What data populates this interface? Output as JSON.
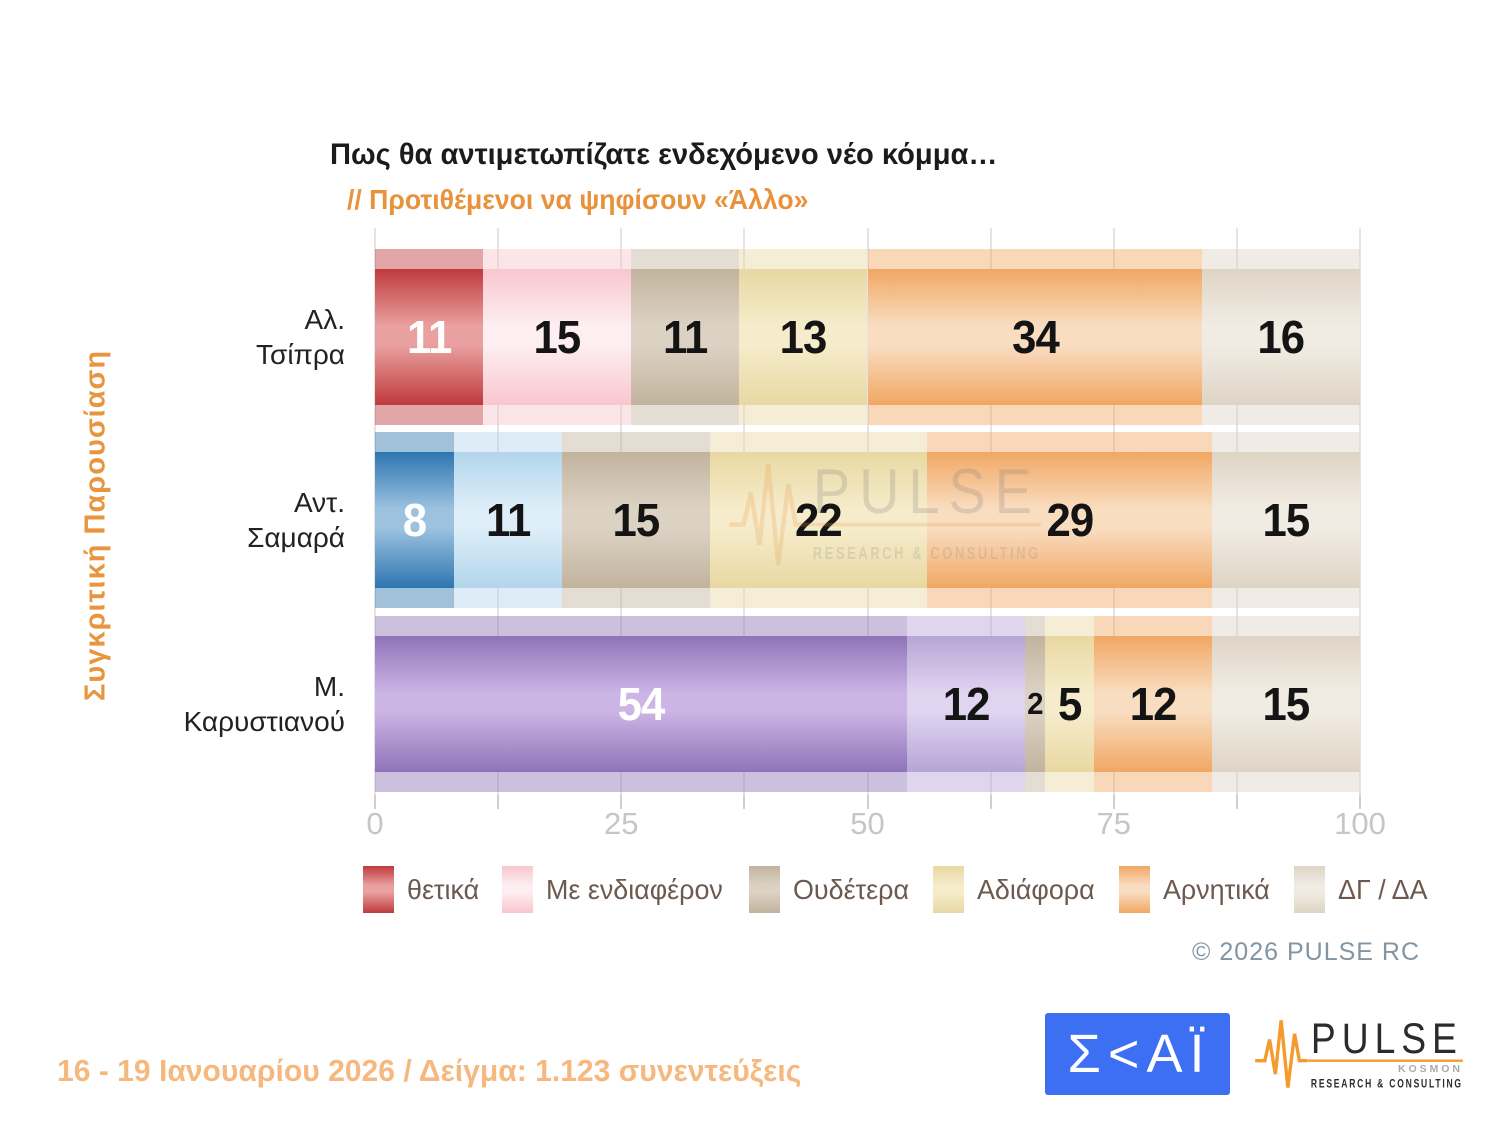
{
  "title": "Πως θα αντιμετωπίζατε ενδεχόμενο νέο κόμμα…",
  "subtitle": "// Προτιθέμενοι να ψηφίσουν «Άλλο»",
  "side_label": "Συγκριτική  Παρουσίαση",
  "footer": {
    "fieldwork": "16 - 19 Ιανουαρίου 2026  /  Δείγμα:  1.123 συνεντεύξεις",
    "copyright": "©  2026  PULSE RC"
  },
  "logos": {
    "skai_text": "Σ<ΑΪ",
    "pulse_text": "PULSE",
    "pulse_kosmon": "KOSMON",
    "pulse_sub": "RESEARCH & CONSULTING"
  },
  "watermark": {
    "text": "PULSE",
    "sub": "RESEARCH & CONSULTING"
  },
  "chart_data": {
    "type": "bar",
    "stacked": true,
    "orientation": "horizontal",
    "title": "Πως θα αντιμετωπίζατε ενδεχόμενο νέο κόμμα…",
    "subtitle": "// Προτιθέμενοι να ψηφίσουν «Άλλο»",
    "xlim": [
      0,
      100
    ],
    "x_ticks": [
      0,
      25,
      50,
      75,
      100
    ],
    "x_minor_tick_step": 12.5,
    "grid": true,
    "legend_position": "bottom",
    "categories": [
      "Αλ. Τσίπρα",
      "Αντ. Σαμαρά",
      "Μ. Καρυστιανού"
    ],
    "series": [
      {
        "name": "θετικά",
        "values": [
          11,
          8,
          54
        ]
      },
      {
        "name": "Με ενδιαφέρον",
        "values": [
          15,
          11,
          12
        ]
      },
      {
        "name": "Ουδέτερα",
        "values": [
          11,
          15,
          2
        ]
      },
      {
        "name": "Αδιάφορα",
        "values": [
          13,
          22,
          5
        ]
      },
      {
        "name": "Αρνητικά",
        "values": [
          34,
          29,
          12
        ]
      },
      {
        "name": "ΔΓ / ΔΑ",
        "values": [
          16,
          15,
          15
        ]
      }
    ],
    "rows": [
      {
        "label_lines": [
          "Αλ.",
          "Τσίπρα"
        ],
        "segments": [
          {
            "value": 11,
            "dark": "#bf3a3c",
            "light": "#e9a0a0",
            "text_color": "#ffffff"
          },
          {
            "value": 15,
            "dark": "#f9c6cf",
            "light": "#fdeef1",
            "text_color": "#141414"
          },
          {
            "value": 11,
            "dark": "#c2b39e",
            "light": "#dcd2c4",
            "text_color": "#141414"
          },
          {
            "value": 13,
            "dark": "#e8d8a2",
            "light": "#f6eccb",
            "text_color": "#141414"
          },
          {
            "value": 34,
            "dark": "#f1a763",
            "light": "#f9ddc1",
            "text_color": "#141414"
          },
          {
            "value": 16,
            "dark": "#ded4c5",
            "light": "#f1ece3",
            "text_color": "#141414"
          }
        ]
      },
      {
        "label_lines": [
          "Αντ.",
          "Σαμαρά"
        ],
        "segments": [
          {
            "value": 8,
            "dark": "#2e75b0",
            "light": "#9cc2e0",
            "text_color": "#ffffff"
          },
          {
            "value": 11,
            "dark": "#b3d5ec",
            "light": "#ddeef8",
            "text_color": "#141414"
          },
          {
            "value": 15,
            "dark": "#c2b39e",
            "light": "#dcd2c4",
            "text_color": "#141414"
          },
          {
            "value": 22,
            "dark": "#e8d8a2",
            "light": "#f6eccb",
            "text_color": "#141414"
          },
          {
            "value": 29,
            "dark": "#f1a763",
            "light": "#f9ddc1",
            "text_color": "#141414"
          },
          {
            "value": 15,
            "dark": "#ded4c5",
            "light": "#f1ece3",
            "text_color": "#141414"
          }
        ]
      },
      {
        "label_lines": [
          "Μ.",
          "Καρυστιανού"
        ],
        "segments": [
          {
            "value": 54,
            "dark": "#8f73b8",
            "light": "#cbb5e4",
            "text_color": "#ffffff"
          },
          {
            "value": 12,
            "dark": "#b7a4d6",
            "light": "#e0d4f0",
            "text_color": "#141414"
          },
          {
            "value": 2,
            "dark": "#c2b39e",
            "light": "#dcd2c4",
            "text_color": "#141414",
            "small": true
          },
          {
            "value": 5,
            "dark": "#e8d8a2",
            "light": "#f6eccb",
            "text_color": "#141414"
          },
          {
            "value": 12,
            "dark": "#f1a763",
            "light": "#f9ddc1",
            "text_color": "#141414"
          },
          {
            "value": 15,
            "dark": "#ded4c5",
            "light": "#f1ece3",
            "text_color": "#141414"
          }
        ]
      }
    ],
    "legend": [
      {
        "label": "θετικά",
        "dark": "#bf3a3c",
        "light": "#e9a0a0"
      },
      {
        "label": "Με ενδιαφέρον",
        "dark": "#f9c6cf",
        "light": "#fdeef1"
      },
      {
        "label": "Ουδέτερα",
        "dark": "#c2b39e",
        "light": "#dcd2c4"
      },
      {
        "label": "Αδιάφορα",
        "dark": "#e8d8a2",
        "light": "#f6eccb"
      },
      {
        "label": "Αρνητικά",
        "dark": "#f1a763",
        "light": "#f9ddc1"
      },
      {
        "label": "ΔΓ / ΔΑ",
        "dark": "#ded4c5",
        "light": "#f1ece3"
      }
    ],
    "colors": {
      "subtitle_orange": "#e8923c",
      "side_label_orange": "#e8953f",
      "fieldwork_orange": "#f6b87f",
      "legend_text": "#6c5a50",
      "copyright_gray": "#8195a4",
      "skai_blue": "#3d6ff2",
      "pulse_orange": "#f59a2d"
    }
  }
}
